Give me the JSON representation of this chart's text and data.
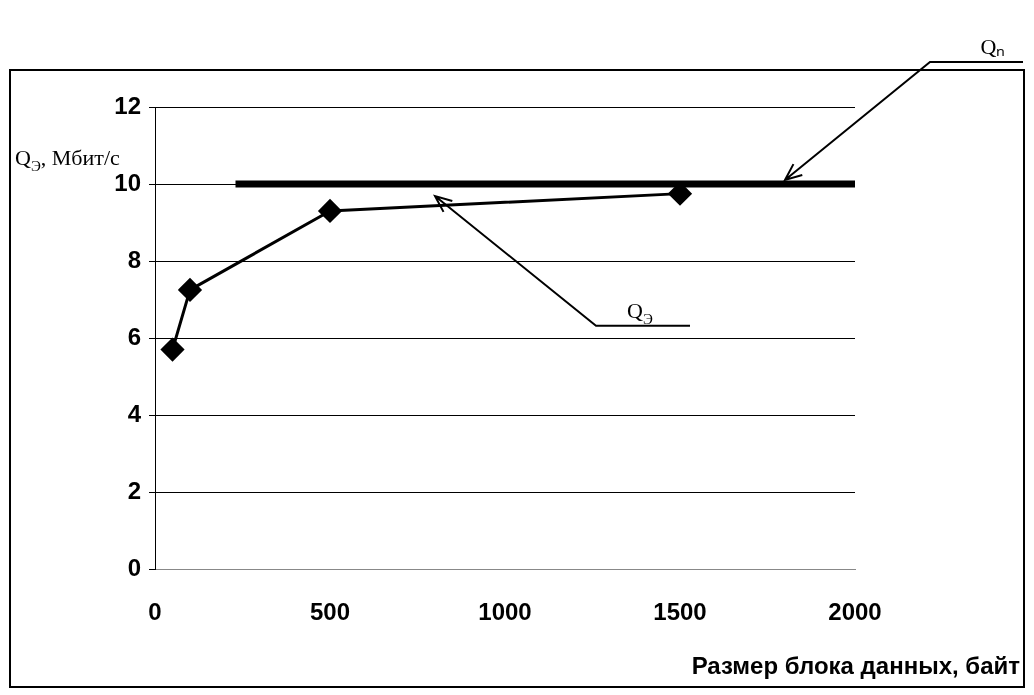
{
  "chart_data": {
    "type": "line",
    "xlabel": "Размер блока данных, байт",
    "ylabel": "Q$_{Э}$, Мбит/с",
    "xlim": [
      0,
      2000
    ],
    "xticks": [
      0,
      500,
      1000,
      1500,
      2000
    ],
    "ylim": [
      0,
      12
    ],
    "yticks": [
      0,
      2,
      4,
      6,
      8,
      10,
      12
    ],
    "grid": "y",
    "legend": false,
    "marker": "diamond",
    "line_style": "solid",
    "series": [
      {
        "name": "Q$_{Э}$",
        "color": "#000000",
        "x": [
          50,
          100,
          500,
          1500
        ],
        "values": [
          5.7,
          7.25,
          9.3,
          9.75
        ]
      },
      {
        "name": "Qₙ",
        "color": "#000000",
        "marker": "none",
        "x": [
          230,
          2000
        ],
        "values": [
          10,
          10
        ]
      }
    ]
  }
}
